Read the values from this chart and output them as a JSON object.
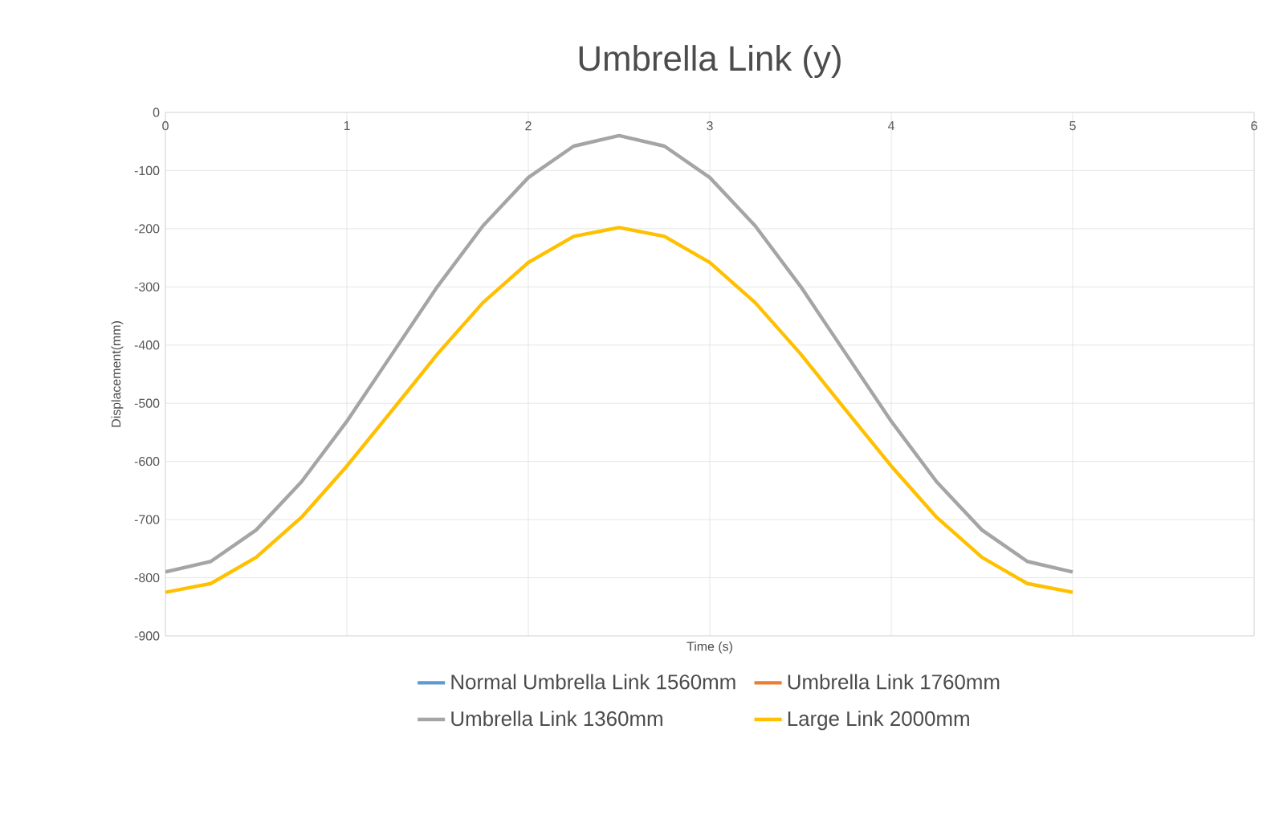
{
  "chart_data": {
    "type": "line",
    "title": "Umbrella Link (y)",
    "xlabel": "Time (s)",
    "ylabel": "Displacement(mm)",
    "x": [
      0,
      0.25,
      0.5,
      0.75,
      1,
      1.25,
      1.5,
      1.75,
      2,
      2.25,
      2.5,
      2.75,
      3,
      3.25,
      3.5,
      3.75,
      4,
      4.25,
      4.5,
      4.75,
      5
    ],
    "series": [
      {
        "name": "Normal Umbrella Link 1560mm",
        "color": "#5b9bd5",
        "values": [
          null,
          null,
          null,
          null,
          null,
          null,
          null,
          null,
          null,
          null,
          null,
          null,
          null,
          null,
          null,
          null,
          null,
          null,
          null,
          null,
          null
        ]
      },
      {
        "name": "Umbrella Link 1760mm",
        "color": "#ed7d31",
        "values": [
          null,
          null,
          null,
          null,
          null,
          null,
          null,
          null,
          null,
          null,
          null,
          null,
          null,
          null,
          null,
          null,
          null,
          null,
          null,
          null,
          null
        ]
      },
      {
        "name": "Umbrella Link 1360mm",
        "color": "#a5a5a5",
        "values": [
          -790,
          -772,
          -718,
          -635,
          -531,
          -415,
          -299,
          -195,
          -112,
          -58,
          -40,
          -58,
          -112,
          -195,
          -299,
          -415,
          -531,
          -635,
          -718,
          -772,
          -790
        ]
      },
      {
        "name": "Large Link 2000mm",
        "color": "#ffc000",
        "values": [
          -825,
          -810,
          -765,
          -696,
          -608,
          -512,
          -415,
          -327,
          -258,
          -213,
          -198,
          -213,
          -258,
          -327,
          -415,
          -512,
          -608,
          -696,
          -765,
          -810,
          -825
        ]
      }
    ],
    "xlim": [
      0,
      6
    ],
    "xticks": [
      0,
      1,
      2,
      3,
      4,
      5,
      6
    ],
    "ylim": [
      -900,
      0
    ],
    "yticks": [
      -900,
      -800,
      -700,
      -600,
      -500,
      -400,
      -300,
      -200,
      -100,
      0
    ],
    "grid": true,
    "legend": "bottom",
    "marker": "none",
    "line_style": "solid"
  }
}
